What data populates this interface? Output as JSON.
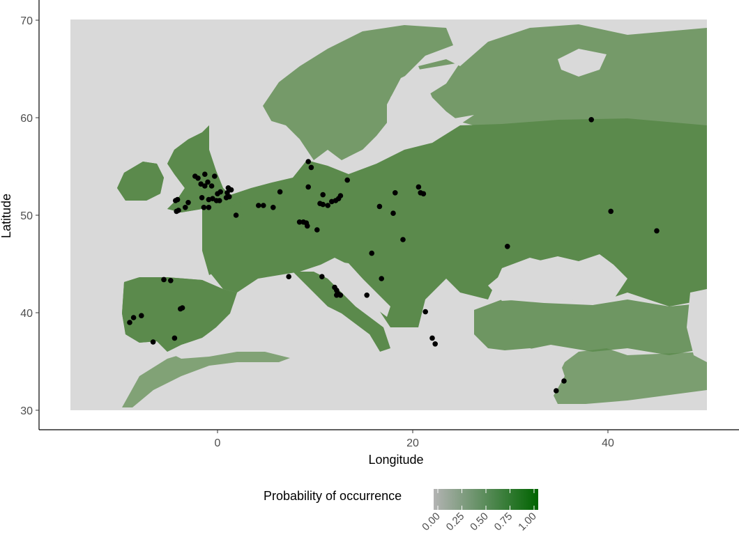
{
  "map": {
    "x_axis": {
      "title": "Longitude",
      "ticks": [
        {
          "value": 0,
          "label": "0"
        },
        {
          "value": 20,
          "label": "20"
        },
        {
          "value": 40,
          "label": "40"
        }
      ]
    },
    "y_axis": {
      "title": "Latitude",
      "ticks": [
        {
          "value": 30,
          "label": "30"
        },
        {
          "value": 40,
          "label": "40"
        },
        {
          "value": 50,
          "label": "50"
        },
        {
          "value": 60,
          "label": "60"
        },
        {
          "value": 70,
          "label": "70"
        }
      ]
    },
    "raster_extent": {
      "lon": [
        -15,
        50
      ],
      "lat": [
        30,
        70
      ]
    },
    "colors": {
      "water": "#d9d9d9",
      "low": "#b3b3b3",
      "high": "#006400",
      "points": "#000000"
    }
  },
  "legend": {
    "title": "Probability of occurrence",
    "ticks": [
      "0.00",
      "0.25",
      "0.50",
      "0.75",
      "1.00"
    ],
    "gradient": [
      "#b3b3b3",
      "#006400"
    ]
  },
  "chart_data": {
    "type": "scatter",
    "description_of_fill": "raster heatmap of probability of occurrence (0 to 1)",
    "xlabel": "Longitude",
    "ylabel": "Latitude",
    "xlim": [
      -15,
      50
    ],
    "ylim": [
      30,
      70
    ],
    "legend_title": "Probability of occurrence",
    "legend_ticks": [
      0,
      0.25,
      0.5,
      0.75,
      1
    ],
    "legend_position": "bottom",
    "grid": false,
    "points": [
      [
        -9.0,
        39.0
      ],
      [
        -8.6,
        39.5
      ],
      [
        -7.8,
        39.7
      ],
      [
        -6.6,
        37.0
      ],
      [
        -5.5,
        43.4
      ],
      [
        -4.8,
        43.3
      ],
      [
        -4.4,
        37.4
      ],
      [
        -3.8,
        40.4
      ],
      [
        -3.6,
        40.5
      ],
      [
        -4.1,
        51.6
      ],
      [
        -4.3,
        51.5
      ],
      [
        -4.2,
        50.4
      ],
      [
        -4.0,
        50.5
      ],
      [
        -3.3,
        50.8
      ],
      [
        -3.0,
        51.3
      ],
      [
        -2.3,
        54.0
      ],
      [
        -2.0,
        53.8
      ],
      [
        -1.7,
        53.2
      ],
      [
        -1.3,
        54.2
      ],
      [
        -1.0,
        53.4
      ],
      [
        -0.6,
        53.0
      ],
      [
        -0.3,
        54.0
      ],
      [
        -1.3,
        53.0
      ],
      [
        -1.6,
        51.8
      ],
      [
        -1.4,
        50.8
      ],
      [
        -0.9,
        50.8
      ],
      [
        -0.9,
        51.6
      ],
      [
        -0.5,
        51.7
      ],
      [
        -0.1,
        51.5
      ],
      [
        0.2,
        51.5
      ],
      [
        0.0,
        52.2
      ],
      [
        0.3,
        52.4
      ],
      [
        0.9,
        51.8
      ],
      [
        1.0,
        52.3
      ],
      [
        1.1,
        52.8
      ],
      [
        1.4,
        52.6
      ],
      [
        1.2,
        51.9
      ],
      [
        1.9,
        50.0
      ],
      [
        4.2,
        51.0
      ],
      [
        4.7,
        51.0
      ],
      [
        5.7,
        50.8
      ],
      [
        6.4,
        52.4
      ],
      [
        9.3,
        55.5
      ],
      [
        9.6,
        54.9
      ],
      [
        9.3,
        52.9
      ],
      [
        8.4,
        49.3
      ],
      [
        8.8,
        49.3
      ],
      [
        9.1,
        49.2
      ],
      [
        9.2,
        48.9
      ],
      [
        10.2,
        48.5
      ],
      [
        10.5,
        51.2
      ],
      [
        10.8,
        52.1
      ],
      [
        10.8,
        51.1
      ],
      [
        11.3,
        51.0
      ],
      [
        11.7,
        51.4
      ],
      [
        12.1,
        51.5
      ],
      [
        12.4,
        51.7
      ],
      [
        12.6,
        52.0
      ],
      [
        13.3,
        53.6
      ],
      [
        16.6,
        50.9
      ],
      [
        18.0,
        50.2
      ],
      [
        18.2,
        52.3
      ],
      [
        20.6,
        52.9
      ],
      [
        20.8,
        52.3
      ],
      [
        21.1,
        52.2
      ],
      [
        19.0,
        47.5
      ],
      [
        15.8,
        46.1
      ],
      [
        16.8,
        43.5
      ],
      [
        15.3,
        41.8
      ],
      [
        10.7,
        43.7
      ],
      [
        7.3,
        43.7
      ],
      [
        12.0,
        42.6
      ],
      [
        12.2,
        42.3
      ],
      [
        12.3,
        42.0
      ],
      [
        12.4,
        41.9
      ],
      [
        12.6,
        41.8
      ],
      [
        12.2,
        41.8
      ],
      [
        21.3,
        40.1
      ],
      [
        22.0,
        37.4
      ],
      [
        22.3,
        36.8
      ],
      [
        29.7,
        46.8
      ],
      [
        34.7,
        32.0
      ],
      [
        35.5,
        33.0
      ],
      [
        38.3,
        59.8
      ],
      [
        40.3,
        50.4
      ],
      [
        45.0,
        48.4
      ]
    ]
  }
}
